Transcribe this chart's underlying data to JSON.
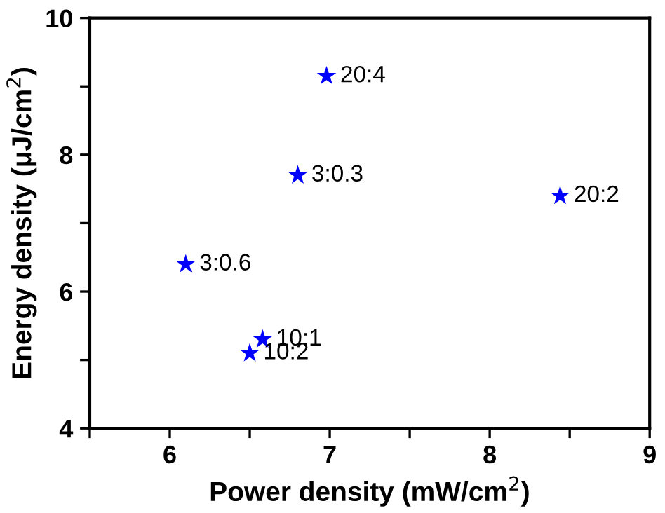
{
  "chart_data": {
    "type": "scatter",
    "xlabel": "Power density (mW/cm$^{2}$)",
    "ylabel": "Energy density (μJ/cm$^{2}$)",
    "x": [
      6.98,
      6.8,
      8.44,
      6.1,
      6.58,
      6.5
    ],
    "series": [
      {
        "color": "#0000ff",
        "values": [
          9.15,
          7.7,
          7.4,
          6.4,
          5.3,
          5.1
        ]
      }
    ],
    "marker": "star",
    "annotations": [
      {
        "text": "20:4",
        "x": 6.98,
        "y": 9.15
      },
      {
        "text": "3:0.3",
        "x": 6.8,
        "y": 7.7
      },
      {
        "text": "20:2",
        "x": 8.44,
        "y": 7.4
      },
      {
        "text": "3:0.6",
        "x": 6.1,
        "y": 6.4
      },
      {
        "text": "10:1",
        "x": 6.58,
        "y": 5.3
      },
      {
        "text": "10:2",
        "x": 6.5,
        "y": 5.1
      }
    ],
    "xlim": [
      5.5,
      9
    ],
    "ylim": [
      4,
      10
    ],
    "xticks": [
      {
        "value": 5.5,
        "label": null
      },
      6,
      {
        "value": 6.5,
        "label": null
      },
      7,
      {
        "value": 7.5,
        "label": null
      },
      8,
      {
        "value": 8.5,
        "label": null
      },
      9
    ],
    "yticks": [
      4,
      {
        "value": 5,
        "label": null
      },
      6,
      {
        "value": 7,
        "label": null
      },
      8,
      {
        "value": 9,
        "label": null
      },
      10
    ],
    "grid": false,
    "legend": false
  }
}
